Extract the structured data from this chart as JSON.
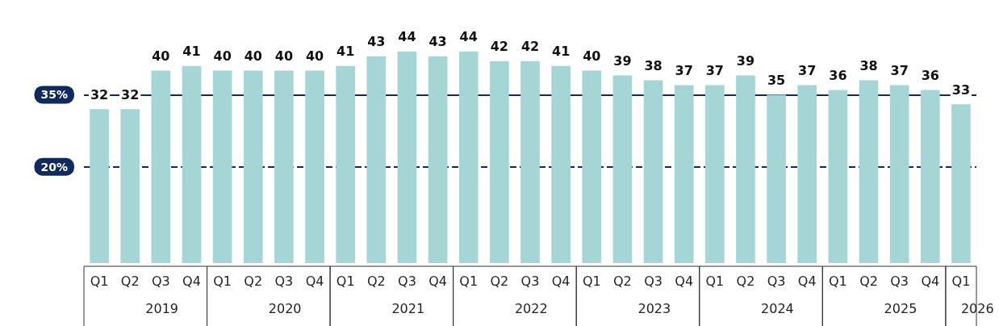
{
  "chart_data": {
    "type": "bar",
    "categories": [
      "Q1",
      "Q2",
      "Q3",
      "Q4",
      "Q1",
      "Q2",
      "Q3",
      "Q4",
      "Q1",
      "Q2",
      "Q3",
      "Q4",
      "Q1",
      "Q2",
      "Q3",
      "Q4",
      "Q1",
      "Q2",
      "Q3",
      "Q4",
      "Q1",
      "Q2",
      "Q3",
      "Q4",
      "Q1",
      "Q2",
      "Q3",
      "Q4",
      "Q1"
    ],
    "values": [
      32,
      32,
      40,
      41,
      40,
      40,
      40,
      40,
      41,
      43,
      44,
      43,
      44,
      42,
      42,
      41,
      40,
      39,
      38,
      37,
      37,
      39,
      35,
      37,
      36,
      38,
      37,
      36,
      33
    ],
    "color": "#a5d5d5",
    "data_labels": true,
    "annotations": [
      "2019",
      "2020",
      "2021",
      "2022",
      "2023",
      "2024",
      "2025",
      "2026"
    ],
    "ref_lines": [
      {
        "axis": "y",
        "value": 35,
        "label": "35%",
        "color": "#0f2a5c",
        "line_style": "solid"
      },
      {
        "axis": "y",
        "value": 20,
        "label": "20%",
        "color": "#0f2a5c",
        "line_style": "dashed"
      }
    ]
  }
}
